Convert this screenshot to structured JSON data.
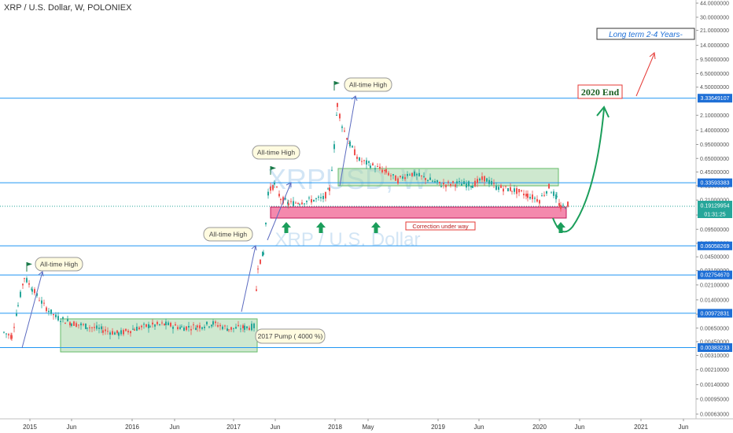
{
  "header": {
    "title": "XRP / U.S. Dollar, W, POLONIEX"
  },
  "watermark": {
    "ticker": "XRPUSD, W",
    "name": "XRP / U.S. Dollar"
  },
  "colors": {
    "up": "#26a69a",
    "down": "#ef5350",
    "hline": "#2196f3",
    "green_zone": "#a5d6a7",
    "red_zone": "#f48fb1",
    "arrow_green": "#1b9e5b",
    "arrow_red": "#ef5350",
    "label_bg": "#1e6fd6",
    "price_bg": "#26a69a"
  },
  "chart_data": {
    "type": "candlestick",
    "y_scale": "log",
    "ylim": [
      0.00063,
      44.0
    ],
    "y_ticks": [
      "44.0000000",
      "30.0000000",
      "21.0000000",
      "14.0000000",
      "9.50000000",
      "6.50000000",
      "4.50000000",
      "2.10000000",
      "1.40000000",
      "0.95000000",
      "0.65000000",
      "0.45000000",
      "0.31000000",
      "0.21000000",
      "0.14000000",
      "0.09500000",
      "0.06500000",
      "0.04500000",
      "0.03100000",
      "0.02100000",
      "0.01400000",
      "0.00950000",
      "0.00650000",
      "0.00450000",
      "0.00310000",
      "0.00210000",
      "0.00140000",
      "0.00095000",
      "0.00063000"
    ],
    "x_ticks": [
      "2015",
      "Jun",
      "2016",
      "Jun",
      "2017",
      "Jun",
      "2018",
      "May",
      "2019",
      "Jun",
      "2020",
      "Jun",
      "2021",
      "Jun"
    ],
    "levels": [
      {
        "value": "3.33649107",
        "price": 3.33649107
      },
      {
        "value": "0.33593383",
        "price": 0.33593383
      },
      {
        "value": "0.06058269",
        "price": 0.06058269
      },
      {
        "value": "0.02754670",
        "price": 0.0275467
      },
      {
        "value": "0.00972831",
        "price": 0.00972831
      },
      {
        "value": "0.00383233",
        "price": 0.00383233
      }
    ],
    "current_price": {
      "value": "0.19129954",
      "countdown": "01:31:25",
      "price": 0.19129954
    },
    "annotations": [
      {
        "text": "All-time High"
      },
      {
        "text": "All-time High"
      },
      {
        "text": "All-time High"
      },
      {
        "text": "All-time High"
      },
      {
        "text": "2017 Pump ( 4000 %)"
      },
      {
        "text": "Correction under way"
      },
      {
        "text": "2020 End"
      },
      {
        "text": "Long term 2-4 Years-"
      }
    ],
    "zones": [
      {
        "name": "accumulation",
        "from": "2015-04",
        "to": "2017-03",
        "low": 0.00383,
        "high": 0.00972
      },
      {
        "name": "support-resistance",
        "from": "2018-02",
        "to": "2020-01",
        "low": 0.3359,
        "high": 0.52
      },
      {
        "name": "correction",
        "from": "2017-05",
        "to": "2020-02",
        "low": 0.165,
        "high": 0.21
      }
    ]
  }
}
